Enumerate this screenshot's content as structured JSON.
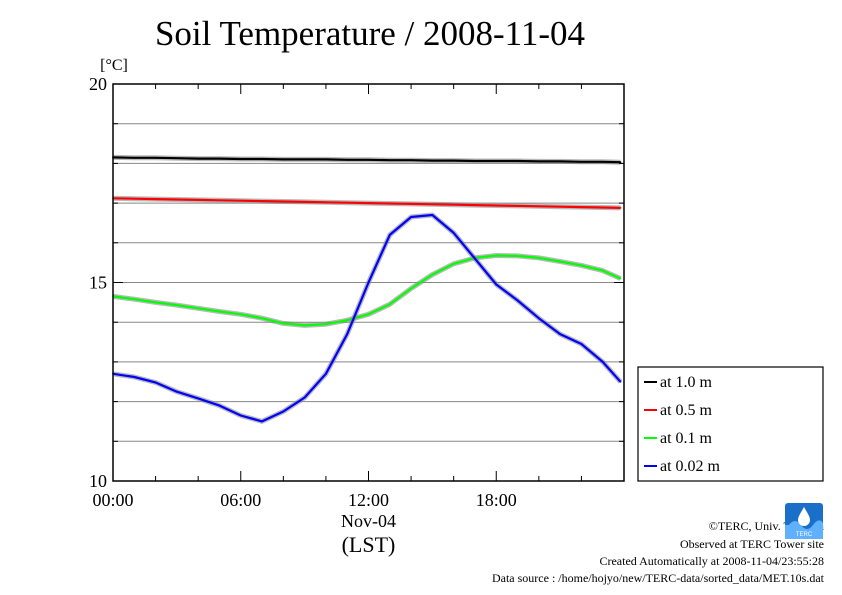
{
  "title": "Soil Temperature / 2008-11-04",
  "colors": {
    "black_series": "#000000",
    "red_series": "#ff0000",
    "green_series": "#00ff00",
    "blue_series": "#0000ff",
    "grid": "#888888",
    "logo_blue": "#1a6fc9"
  },
  "footer": {
    "credit": "©TERC, Univ. Tsukuba",
    "site": "Observed at TERC Tower site",
    "created": "Created Automatically at 2008-11-04/23:55:28",
    "source": "Data source : /home/hojyo/new/TERC-data/sorted_data/MET.10s.dat",
    "logo_text": "TERC"
  },
  "chart_data": {
    "type": "line",
    "title": "Soil Temperature / 2008-11-04",
    "ylabel": "[°C]",
    "xlabel": "(LST)",
    "x_date_label": "Nov-04",
    "ylim": [
      10,
      20
    ],
    "y_ticks": [
      10,
      15,
      20
    ],
    "y_minor_step": 1,
    "xlim": [
      "00:00",
      "24:00"
    ],
    "x_ticks": [
      "00:00",
      "06:00",
      "12:00",
      "18:00"
    ],
    "grid": true,
    "legend_position": "right",
    "x": [
      "00:00",
      "01:00",
      "02:00",
      "03:00",
      "04:00",
      "05:00",
      "06:00",
      "07:00",
      "08:00",
      "09:00",
      "10:00",
      "11:00",
      "12:00",
      "13:00",
      "14:00",
      "15:00",
      "16:00",
      "17:00",
      "18:00",
      "19:00",
      "20:00",
      "21:00",
      "22:00",
      "23:00",
      "23:50"
    ],
    "series": [
      {
        "name": "at 1.0 m",
        "color": "#000000",
        "values": [
          18.15,
          18.14,
          18.14,
          18.13,
          18.12,
          18.12,
          18.11,
          18.11,
          18.1,
          18.1,
          18.1,
          18.09,
          18.09,
          18.08,
          18.08,
          18.07,
          18.07,
          18.06,
          18.06,
          18.06,
          18.05,
          18.05,
          18.04,
          18.04,
          18.03
        ]
      },
      {
        "name": "at 0.5 m",
        "color": "#ff0000",
        "values": [
          17.12,
          17.11,
          17.1,
          17.09,
          17.08,
          17.07,
          17.06,
          17.05,
          17.04,
          17.03,
          17.02,
          17.01,
          17.0,
          16.99,
          16.98,
          16.97,
          16.96,
          16.95,
          16.94,
          16.93,
          16.92,
          16.91,
          16.9,
          16.89,
          16.88
        ]
      },
      {
        "name": "at 0.1 m",
        "color": "#00ff00",
        "values": [
          14.65,
          14.58,
          14.5,
          14.43,
          14.35,
          14.27,
          14.2,
          14.1,
          13.97,
          13.92,
          13.95,
          14.05,
          14.2,
          14.45,
          14.85,
          15.2,
          15.47,
          15.62,
          15.68,
          15.67,
          15.62,
          15.53,
          15.43,
          15.3,
          15.1
        ]
      },
      {
        "name": "at 0.02 m",
        "color": "#0000ff",
        "values": [
          12.7,
          12.62,
          12.48,
          12.25,
          12.08,
          11.9,
          11.65,
          11.5,
          11.75,
          12.1,
          12.7,
          13.7,
          15.0,
          16.2,
          16.65,
          16.7,
          16.25,
          15.6,
          14.95,
          14.55,
          14.1,
          13.7,
          13.45,
          13.0,
          12.5
        ]
      }
    ]
  }
}
